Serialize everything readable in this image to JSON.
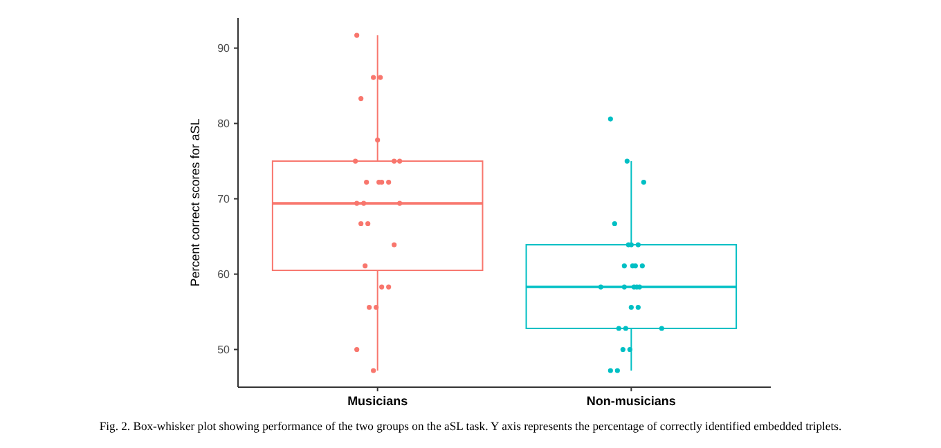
{
  "chart_data": {
    "type": "box",
    "ylabel": "Percent correct scores for aSL",
    "categories": [
      "Musicians",
      "Non-musicians"
    ],
    "ylim": [
      45,
      94
    ],
    "yticks": [
      50,
      60,
      70,
      80,
      90
    ],
    "grid": false,
    "series": [
      {
        "colors": [
          "#f8766d",
          "#00bfc4"
        ],
        "boxes": [
          {
            "low": 47.2,
            "q1": 60.5,
            "median": 69.4,
            "q3": 75,
            "high": 91.7
          },
          {
            "low": 47.2,
            "q1": 52.8,
            "median": 58.3,
            "q3": 63.9,
            "high": 75
          }
        ]
      },
      {
        "type": "scatter",
        "color": "#f8766d",
        "x": [
          "Musicians",
          "Musicians",
          "Musicians",
          "Musicians",
          "Musicians",
          "Musicians",
          "Musicians",
          "Musicians",
          "Musicians",
          "Musicians",
          "Musicians",
          "Musicians",
          "Musicians",
          "Musicians",
          "Musicians",
          "Musicians",
          "Musicians",
          "Musicians",
          "Musicians",
          "Musicians",
          "Musicians",
          "Musicians",
          "Musicians",
          "Musicians",
          "Musicians"
        ],
        "values": [
          91.7,
          86.1,
          86.1,
          83.3,
          77.8,
          75,
          75,
          72.2,
          72.2,
          72.2,
          72.2,
          69.4,
          69.4,
          69.4,
          66.7,
          66.7,
          63.9,
          61.1,
          58.3,
          58.3,
          55.6,
          55.6,
          50,
          47.2,
          75
        ]
      },
      {
        "type": "scatter",
        "color": "#00bfc4",
        "x": [
          "Non-musicians",
          "Non-musicians",
          "Non-musicians",
          "Non-musicians",
          "Non-musicians",
          "Non-musicians",
          "Non-musicians",
          "Non-musicians",
          "Non-musicians",
          "Non-musicians",
          "Non-musicians",
          "Non-musicians",
          "Non-musicians",
          "Non-musicians",
          "Non-musicians",
          "Non-musicians",
          "Non-musicians",
          "Non-musicians",
          "Non-musicians",
          "Non-musicians",
          "Non-musicians",
          "Non-musicians",
          "Non-musicians",
          "Non-musicians",
          "Non-musicians"
        ],
        "values": [
          80.6,
          75,
          72.2,
          66.7,
          63.9,
          63.9,
          63.9,
          61.1,
          61.1,
          61.1,
          58.3,
          58.3,
          58.3,
          58.3,
          58.3,
          55.6,
          55.6,
          52.8,
          52.8,
          52.8,
          50,
          50,
          47.2,
          47.2,
          61.1
        ]
      }
    ],
    "annotations": [
      "Fig. 2. Box-whisker plot showing performance of the two groups on the aSL task. Y axis represents the percentage of correctly identified embedded triplets."
    ]
  }
}
